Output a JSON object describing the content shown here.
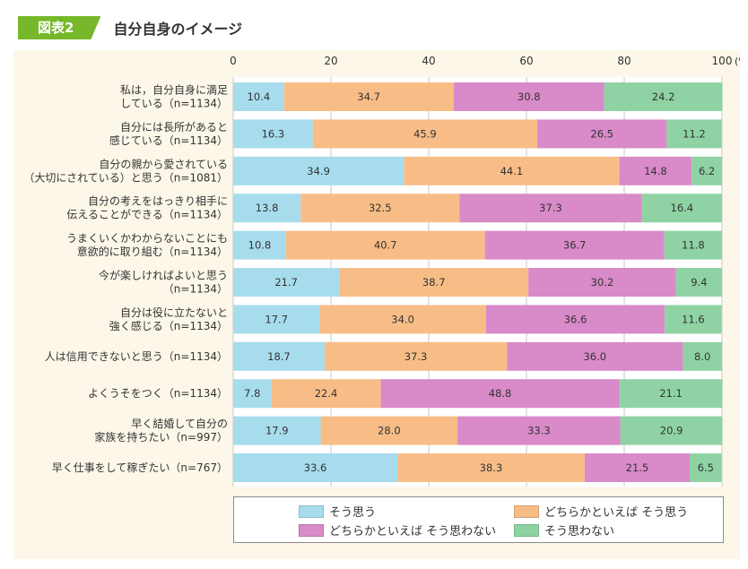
{
  "header": {
    "badge": "図表2",
    "title": "自分自身のイメージ"
  },
  "chart_data": {
    "type": "bar",
    "orientation": "horizontal",
    "stacked": true,
    "xlim": [
      0,
      100
    ],
    "x_ticks": [
      "0",
      "20",
      "40",
      "60",
      "80",
      "100"
    ],
    "x_unit": "(%)",
    "categories": [
      [
        "私は，自分自身に満足",
        "している（n=1134）"
      ],
      [
        "自分には長所があると",
        "感じている（n=1134）"
      ],
      [
        "自分の親から愛されている",
        "（大切にされている）と思う（n=1081）"
      ],
      [
        "自分の考えをはっきり相手に",
        "伝えることができる（n=1134）"
      ],
      [
        "うまくいくかわからないことにも",
        "意欲的に取り組む（n=1134）"
      ],
      [
        "今が楽しければよいと思う",
        "（n=1134）"
      ],
      [
        "自分は役に立たないと",
        "強く感じる（n=1134）"
      ],
      [
        "人は信用できないと思う（n=1134）"
      ],
      [
        "よくうそをつく（n=1134）"
      ],
      [
        "早く結婚して自分の",
        "家族を持ちたい（n=997）"
      ],
      [
        "早く仕事をして稼ぎたい（n=767）"
      ]
    ],
    "series": [
      {
        "name": "そう思う",
        "color": "#a7dced",
        "values": [
          "10.4",
          "16.3",
          "34.9",
          "13.8",
          "10.8",
          "21.7",
          "17.7",
          "18.7",
          "7.8",
          "17.9",
          "33.6"
        ]
      },
      {
        "name": "どちらかといえば そう思う",
        "color": "#f8bd87",
        "values": [
          "34.7",
          "45.9",
          "44.1",
          "32.5",
          "40.7",
          "38.7",
          "34.0",
          "37.3",
          "22.4",
          "28.0",
          "38.3"
        ]
      },
      {
        "name": "どちらかといえば そう思わない",
        "color": "#d98ac9",
        "values": [
          "30.8",
          "26.5",
          "14.8",
          "37.3",
          "36.7",
          "30.2",
          "36.6",
          "36.0",
          "48.8",
          "33.3",
          "21.5"
        ]
      },
      {
        "name": "そう思わない",
        "color": "#8fd3a4",
        "values": [
          "24.2",
          "11.2",
          "6.2",
          "16.4",
          "11.8",
          "9.4",
          "11.6",
          "8.0",
          "21.1",
          "20.9",
          "6.5"
        ]
      }
    ],
    "grid": "vertical",
    "legend_position": "bottom"
  }
}
